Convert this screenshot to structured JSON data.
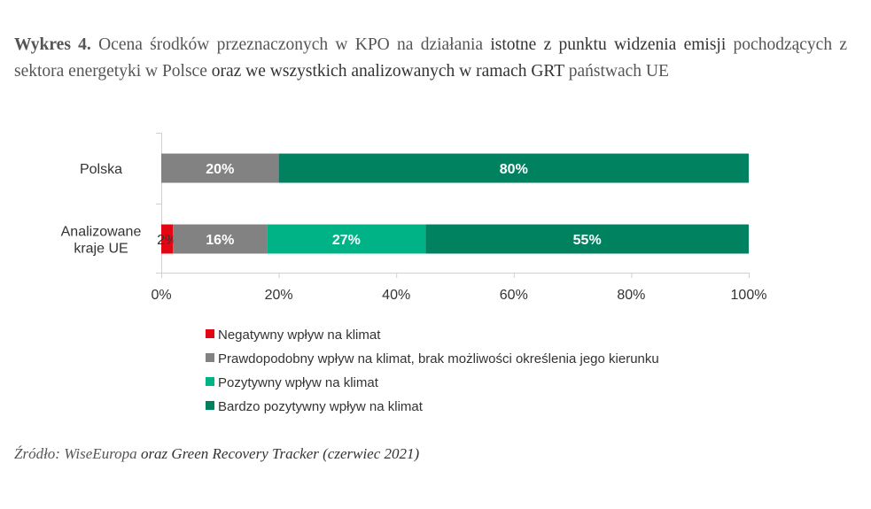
{
  "title": {
    "lead": "Wykres 4.",
    "part1": "Ocena środków przeznaczonych w KPO na działania",
    "part2": "istotne z punktu widzenia emisji",
    "part3": "pochodzących z sektora energetyki w Polsce",
    "part4": "oraz we wszystkich analizowanych w ramach GRT",
    "part5": "państwach UE"
  },
  "chart_data": {
    "type": "bar",
    "orientation": "horizontal",
    "stacked": true,
    "categories": [
      "Polska",
      "Analizowane kraje UE"
    ],
    "category_lines": [
      [
        "Polska"
      ],
      [
        "Analizowane",
        "kraje UE"
      ]
    ],
    "series": [
      {
        "name": "Negatywny wpływ na klimat",
        "color": "#e30613",
        "values": [
          0,
          2
        ],
        "labels": [
          "",
          "2%"
        ],
        "label_color": "#333333"
      },
      {
        "name": "Prawdopodobny wpływ na klimat, brak możliwości określenia jego kierunku",
        "color": "#828282",
        "values": [
          20,
          16
        ],
        "labels": [
          "20%",
          "16%"
        ],
        "label_color": "#ffffff"
      },
      {
        "name": "Pozytywny wpływ na klimat",
        "color": "#00b386",
        "values": [
          0,
          27
        ],
        "labels": [
          "",
          "27%"
        ],
        "label_color": "#ffffff"
      },
      {
        "name": "Bardzo pozytywny wpływ na klimat",
        "color": "#008261",
        "values": [
          80,
          55
        ],
        "labels": [
          "80%",
          "55%"
        ],
        "label_color": "#ffffff"
      }
    ],
    "xlim": [
      0,
      100
    ],
    "xticks": [
      0,
      20,
      40,
      60,
      80,
      100
    ],
    "xtick_labels": [
      "0%",
      "20%",
      "40%",
      "60%",
      "80%",
      "100%"
    ],
    "grid": false,
    "legend_position": "bottom"
  },
  "source": {
    "part1": "Źródło: WiseEuropa",
    "part2": "oraz Green Recovery Tracker (czerwiec 2021)"
  }
}
